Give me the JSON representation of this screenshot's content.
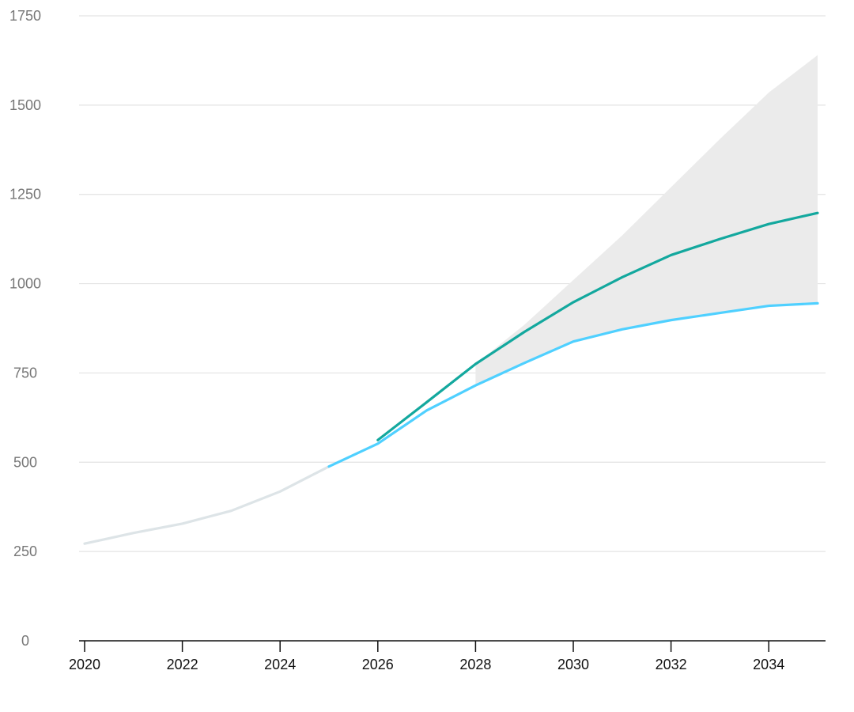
{
  "chart_data": {
    "type": "line",
    "title": "",
    "xlabel": "",
    "ylabel": "",
    "xlim": [
      2020,
      2035
    ],
    "ylim": [
      0,
      1750
    ],
    "x_ticks": [
      "2020",
      "2022",
      "2024",
      "2026",
      "2028",
      "2030",
      "2032",
      "2034"
    ],
    "y_ticks": [
      "0",
      "250",
      "500",
      "750",
      "1000",
      "1250",
      "1500",
      "1750"
    ],
    "grid": true,
    "legend": "none",
    "band": {
      "color": "#ebebeb",
      "x": [
        2028,
        2029,
        2030,
        2031,
        2032,
        2033,
        2034,
        2035
      ],
      "upper": [
        775,
        885,
        1010,
        1135,
        1270,
        1405,
        1535,
        1640
      ],
      "lower": [
        715,
        778,
        838,
        872,
        898,
        918,
        938,
        945
      ]
    },
    "series": [
      {
        "color": "#dde4e7",
        "x": [
          2020,
          2021,
          2022,
          2023,
          2024,
          2025
        ],
        "values": [
          272,
          302,
          328,
          364,
          418,
          488
        ]
      },
      {
        "color": "#4fd0ff",
        "x": [
          2025,
          2026,
          2027,
          2028,
          2029,
          2030,
          2031,
          2032,
          2033,
          2034,
          2035
        ],
        "values": [
          488,
          552,
          645,
          715,
          778,
          838,
          872,
          898,
          918,
          938,
          945
        ]
      },
      {
        "color": "#13a89e",
        "x": [
          2026,
          2027,
          2028,
          2029,
          2030,
          2031,
          2032,
          2033,
          2034,
          2035
        ],
        "values": [
          562,
          668,
          775,
          865,
          948,
          1018,
          1080,
          1125,
          1167,
          1198
        ]
      }
    ]
  }
}
